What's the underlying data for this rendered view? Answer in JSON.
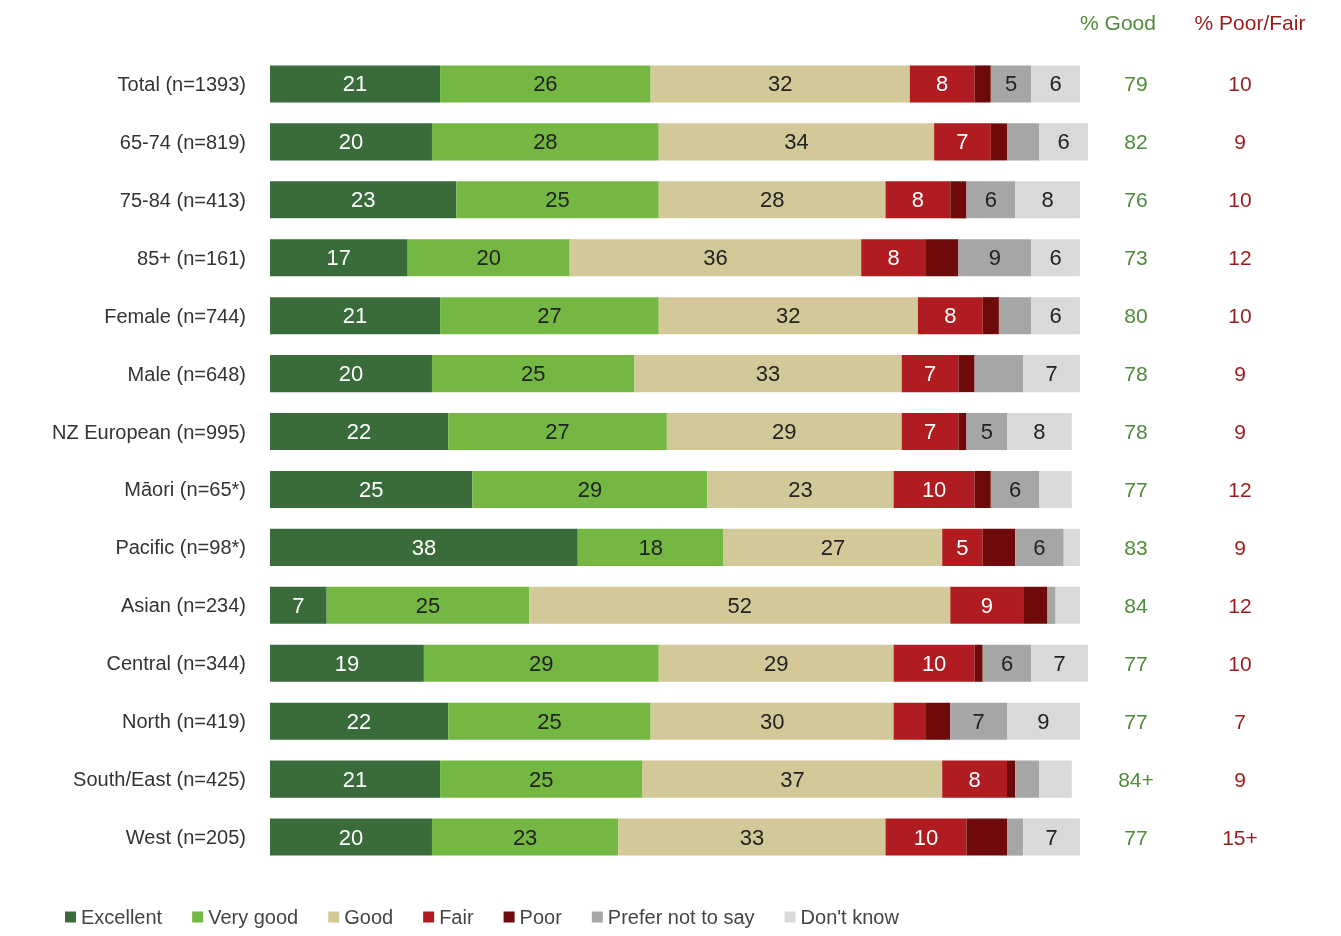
{
  "chart_data": {
    "type": "bar",
    "orientation": "horizontal",
    "stacked": true,
    "legend": "bottom left",
    "tick_labels": "y",
    "categories": [
      "Total (n=1393)",
      "65-74 (n=819)",
      "75-84 (n=413)",
      "85+ (n=161)",
      "Female (n=744)",
      "Male (n=648)",
      "NZ European (n=995)",
      "Māori (n=65*)",
      "Pacific (n=98*)",
      "Asian (n=234)",
      "Central (n=344)",
      "North (n=419)",
      "South/East (n=425)",
      "West (n=205)"
    ],
    "series": [
      {
        "name": "Excellent",
        "color": "#3a6b3a",
        "values": [
          21,
          20,
          23,
          17,
          21,
          20,
          22,
          25,
          38,
          7,
          19,
          22,
          21,
          20
        ],
        "value_labels": [
          "21",
          "20",
          "23",
          "17",
          "21",
          "20",
          "22",
          "25",
          "38",
          "7",
          "19",
          "22",
          "21",
          "20"
        ]
      },
      {
        "name": "Very good",
        "color": "#74b843",
        "values": [
          26,
          28,
          25,
          20,
          27,
          25,
          27,
          29,
          18,
          25,
          29,
          25,
          25,
          23
        ],
        "value_labels": [
          "26",
          "28",
          "25",
          "20",
          "27",
          "25",
          "27",
          "29",
          "18",
          "25",
          "29",
          "25",
          "25",
          "23"
        ]
      },
      {
        "name": "Good",
        "color": "#d3c898",
        "values": [
          32,
          34,
          28,
          36,
          32,
          33,
          29,
          23,
          27,
          52,
          29,
          30,
          37,
          33
        ],
        "value_labels": [
          "32",
          "34",
          "28",
          "36",
          "32",
          "33",
          "29",
          "23",
          "27",
          "52",
          "29",
          "30",
          "37",
          "33"
        ]
      },
      {
        "name": "Fair",
        "color": "#b01c20",
        "values": [
          8,
          7,
          8,
          8,
          8,
          7,
          7,
          10,
          5,
          9,
          10,
          4,
          8,
          10
        ],
        "value_labels": [
          "8",
          "7",
          "8",
          "8",
          "8",
          "7",
          "7",
          "10",
          "5",
          "9",
          "10",
          null,
          "8",
          "10"
        ]
      },
      {
        "name": "Poor",
        "color": "#6e0a0a",
        "values": [
          2,
          2,
          2,
          4,
          2,
          2,
          1,
          2,
          4,
          3,
          1,
          3,
          1,
          5
        ]
      },
      {
        "name": "Prefer not to say",
        "color": "#a6a6a6",
        "values": [
          5,
          4,
          6,
          9,
          4,
          6,
          5,
          6,
          6,
          1,
          6,
          7,
          3,
          2
        ],
        "value_labels": [
          "5",
          null,
          "6",
          "9",
          null,
          null,
          "5",
          "6",
          "6",
          null,
          "6",
          "7",
          null,
          null
        ]
      },
      {
        "name": "Don't know",
        "color": "#d9d9d9",
        "values": [
          6,
          6,
          8,
          6,
          6,
          7,
          8,
          4,
          2,
          3,
          7,
          9,
          4,
          7
        ],
        "value_labels": [
          "6",
          "6",
          "8",
          "6",
          "6",
          "7",
          "8",
          null,
          null,
          null,
          "7",
          "9",
          null,
          "7"
        ]
      }
    ],
    "annotations": [
      "% Good",
      "% Poor/Fair",
      "79",
      "82",
      "76",
      "73",
      "80",
      "78",
      "78",
      "77",
      "83",
      "84",
      "77",
      "77",
      "84+",
      "77",
      "10",
      "9",
      "10",
      "12",
      "10",
      "9",
      "9",
      "12",
      "9",
      "12",
      "10",
      "7",
      "9",
      "15+"
    ]
  }
}
